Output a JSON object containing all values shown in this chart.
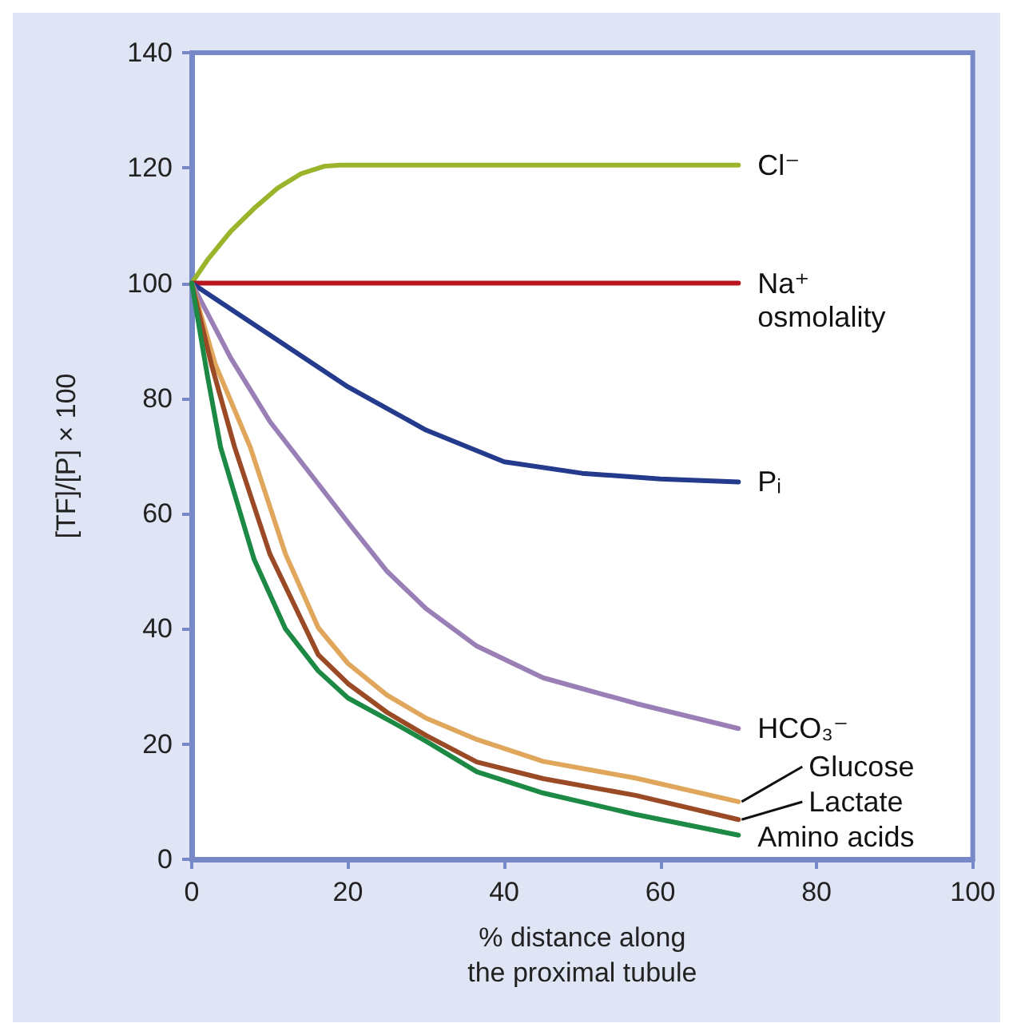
{
  "chart_data": {
    "type": "line",
    "xlabel": "% distance along\nthe proximal tubule",
    "ylabel": "[TF]/[P] × 100",
    "xlim": [
      0,
      100
    ],
    "xticks": [
      0,
      20,
      40,
      60,
      80,
      100
    ],
    "ylim": [
      0,
      140
    ],
    "yticks": [
      0,
      20,
      40,
      60,
      80,
      100,
      120,
      140
    ],
    "grid": false,
    "legend": false,
    "marker": "none",
    "line_style": "solid",
    "series": [
      {
        "name": "Cl⁻",
        "color": "#9ab52c",
        "x": [
          0,
          2,
          5,
          8,
          11,
          14,
          17,
          19,
          70
        ],
        "values": [
          100,
          104,
          109,
          113,
          116.5,
          119,
          120.3,
          120.5,
          120.5
        ]
      },
      {
        "name": "Na⁺\nosmolality",
        "color": "#b7151f",
        "x": [
          0,
          70
        ],
        "values": [
          100,
          100
        ]
      },
      {
        "name": "Pᵢ",
        "color": "#243a8c",
        "x": [
          0,
          10,
          20,
          30,
          40,
          50,
          60,
          70
        ],
        "values": [
          100,
          91,
          82,
          74.5,
          69,
          67,
          66,
          65.5
        ]
      },
      {
        "name": "HCO₃⁻",
        "color": "#9a7fb7",
        "x": [
          0,
          5,
          10,
          14,
          20,
          25,
          30,
          36.5,
          45,
          57,
          70
        ],
        "values": [
          100,
          87,
          76,
          69,
          58.5,
          50,
          43.5,
          37,
          31.5,
          27,
          22.7
        ]
      },
      {
        "name": "Glucose",
        "color": "#e0a65c",
        "x": [
          0,
          3,
          7.5,
          12,
          16.2,
          20,
          25,
          30,
          36.5,
          45,
          56.8,
          70
        ],
        "values": [
          100,
          86,
          71.5,
          53,
          40.2,
          34,
          28.5,
          24.5,
          20.8,
          17,
          14.1,
          10
        ]
      },
      {
        "name": "Lactate",
        "color": "#9b4a26",
        "x": [
          0,
          2.5,
          5.5,
          10,
          16.2,
          20,
          25,
          30,
          36.5,
          45,
          56.8,
          70
        ],
        "values": [
          100,
          86,
          71.5,
          53,
          35.5,
          30.5,
          25.5,
          21.5,
          16.9,
          14,
          11.1,
          6.9
        ]
      },
      {
        "name": "Amino acids",
        "color": "#1c8a44",
        "x": [
          0,
          2,
          3.7,
          8,
          12,
          16.2,
          20,
          25.7,
          30,
          36.5,
          45,
          56.8,
          70
        ],
        "values": [
          100,
          84,
          71.5,
          52,
          40,
          32.7,
          28,
          23.8,
          20.5,
          15.2,
          11.5,
          7.8,
          4.2
        ]
      }
    ]
  }
}
